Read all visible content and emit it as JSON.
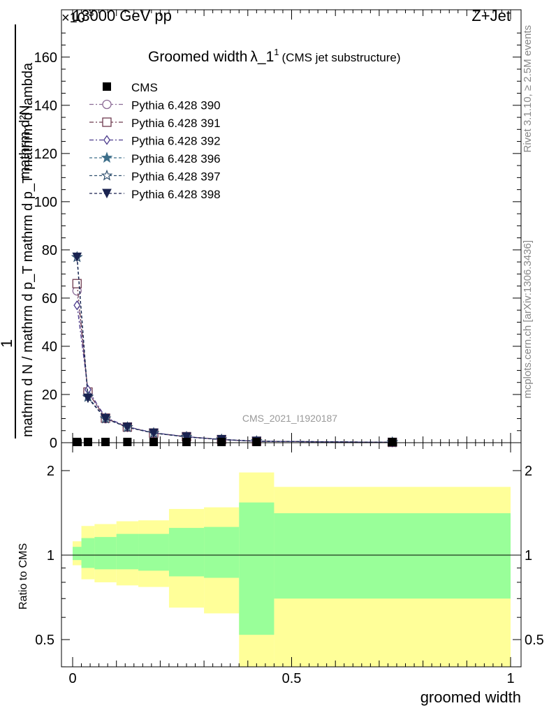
{
  "header": {
    "left": "13000 GeV pp",
    "right": "Z+Jet",
    "exponent_label": "×10",
    "exponent_power": "-3"
  },
  "side_labels": {
    "rivet": "Rivet 3.1.10, ≥ 2.5M events",
    "mcplots": "mcplots.cern.ch [arXiv:1306.3436]"
  },
  "chart_data": [
    {
      "type": "line",
      "title": "Groomed width",
      "title_symbol": "λ_1",
      "title_sup": "1",
      "subtitle": "(CMS jet substructure)",
      "watermark": "CMS_2021_I1920187",
      "ylabel_top": "1",
      "ylabel_num": "mathrm d²N",
      "ylabel_den": "mathrm d N / mathrm d p_T mathrm d p_T mathrm d lambda",
      "xlim": [
        0,
        1
      ],
      "ylim": [
        0,
        175
      ],
      "yticks": [
        0,
        20,
        40,
        60,
        80,
        100,
        120,
        140,
        160
      ],
      "legend_position": "top-left",
      "x_edges": [
        0,
        0.02,
        0.05,
        0.1,
        0.15,
        0.22,
        0.3,
        0.38,
        0.46,
        1.0
      ],
      "cms": {
        "name": "CMS",
        "x": [
          0.01,
          0.035,
          0.075,
          0.125,
          0.185,
          0.26,
          0.34,
          0.42,
          0.73
        ],
        "y": [
          0.3,
          0.3,
          0.3,
          0.3,
          0.3,
          0.2,
          0.2,
          0.1,
          0.1
        ]
      },
      "series": [
        {
          "name": "Pythia 6.428 390",
          "color": "#8b6a95",
          "marker": "circle-open",
          "dash": "6,3,2,3",
          "x": [
            0.01,
            0.035,
            0.075,
            0.125,
            0.185,
            0.26,
            0.34,
            0.42,
            0.73
          ],
          "y": [
            63,
            21,
            10,
            6.5,
            4,
            2.5,
            1.3,
            0.6,
            0.15
          ]
        },
        {
          "name": "Pythia 6.428 391",
          "color": "#6e3a4f",
          "marker": "square-open",
          "dash": "6,3,2,3",
          "x": [
            0.01,
            0.035,
            0.075,
            0.125,
            0.185,
            0.26,
            0.34,
            0.42,
            0.73
          ],
          "y": [
            66,
            21,
            10.2,
            6.5,
            4,
            2.5,
            1.3,
            0.6,
            0.15
          ]
        },
        {
          "name": "Pythia 6.428 392",
          "color": "#4b3a8c",
          "marker": "diamond-open",
          "dash": "6,3,2,3",
          "x": [
            0.01,
            0.035,
            0.075,
            0.125,
            0.185,
            0.26,
            0.34,
            0.42,
            0.73
          ],
          "y": [
            57,
            22,
            10.5,
            6.6,
            4.1,
            2.5,
            1.3,
            0.6,
            0.15
          ]
        },
        {
          "name": "Pythia 6.428 396",
          "color": "#3d6f8a",
          "marker": "star-filled",
          "dash": "4,3",
          "x": [
            0.01,
            0.035,
            0.075,
            0.125,
            0.185,
            0.26,
            0.34,
            0.42,
            0.73
          ],
          "y": [
            77,
            19,
            10,
            6.4,
            4,
            2.4,
            1.3,
            0.6,
            0.15
          ]
        },
        {
          "name": "Pythia 6.428 397",
          "color": "#2f4f6e",
          "marker": "star-open",
          "dash": "4,3",
          "x": [
            0.01,
            0.035,
            0.075,
            0.125,
            0.185,
            0.26,
            0.34,
            0.42,
            0.73
          ],
          "y": [
            77,
            19,
            10,
            6.4,
            4,
            2.4,
            1.3,
            0.6,
            0.15
          ]
        },
        {
          "name": "Pythia 6.428 398",
          "color": "#1a2350",
          "marker": "triangle-down-filled",
          "dash": "4,3",
          "x": [
            0.01,
            0.035,
            0.075,
            0.125,
            0.185,
            0.26,
            0.34,
            0.42,
            0.73
          ],
          "y": [
            77,
            18.5,
            10,
            6.4,
            4,
            2.4,
            1.3,
            0.6,
            0.15
          ]
        }
      ]
    },
    {
      "type": "area",
      "ylabel": "Ratio to CMS",
      "xlabel": "groomed width",
      "xlim": [
        0,
        1
      ],
      "ylim": [
        0.35,
        2.3
      ],
      "yticks": [
        0.5,
        1,
        2
      ],
      "xticks": [
        0,
        0.5,
        1
      ],
      "xtick_labels": [
        "0",
        "0.5",
        "1"
      ],
      "ytick_labels": [
        "0.5",
        "1",
        "2"
      ],
      "bands": {
        "edges": [
          0,
          0.02,
          0.05,
          0.1,
          0.15,
          0.22,
          0.3,
          0.38,
          0.46,
          1.0
        ],
        "yellow_color": "#ffff99",
        "green_color": "#99ff99",
        "yellow_lo": [
          0.92,
          0.82,
          0.8,
          0.78,
          0.77,
          0.65,
          0.62,
          0.3,
          0.3
        ],
        "yellow_hi": [
          1.12,
          1.27,
          1.29,
          1.32,
          1.33,
          1.46,
          1.48,
          1.97,
          1.75
        ],
        "green_lo": [
          0.96,
          0.9,
          0.89,
          0.89,
          0.88,
          0.84,
          0.83,
          0.52,
          0.7
        ],
        "green_hi": [
          1.07,
          1.15,
          1.16,
          1.19,
          1.19,
          1.25,
          1.26,
          1.54,
          1.41
        ]
      }
    }
  ]
}
